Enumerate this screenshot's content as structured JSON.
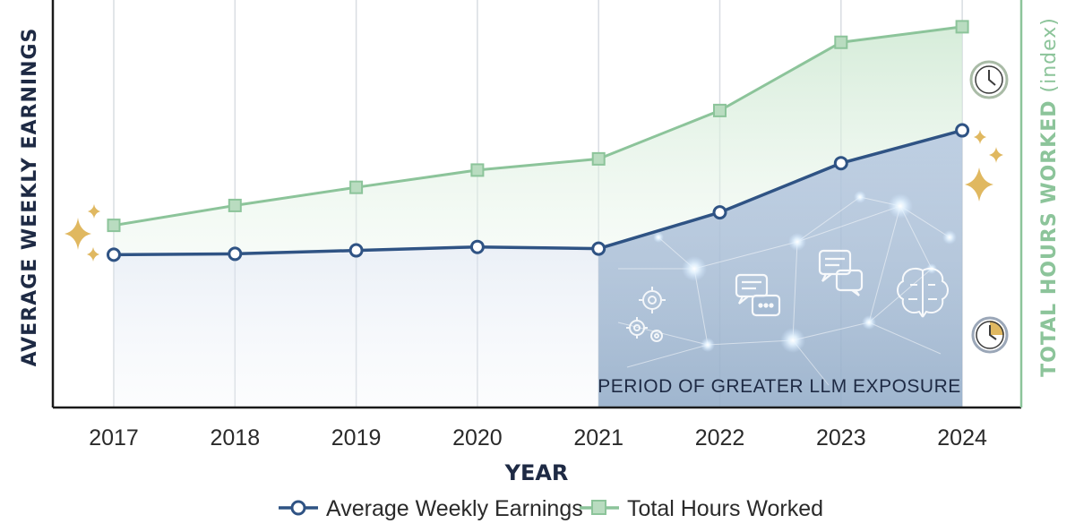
{
  "chart_data": {
    "type": "line",
    "title": "",
    "xlabel": "YEAR",
    "ylabel_left": "AVERAGE WEEKLY EARNINGS",
    "ylabel_right": "TOTAL HOURS WORKED",
    "ylabel_right_unit": "(index)",
    "x": [
      "2017",
      "2018",
      "2019",
      "2020",
      "2021",
      "2022",
      "2023",
      "2024"
    ],
    "series": [
      {
        "name": "Average Weekly Earnings",
        "axis": "left",
        "color": "#2f5384",
        "marker": "circle",
        "values": [
          100,
          100.2,
          101,
          101.8,
          101.4,
          109.8,
          121.2,
          128.8
        ]
      },
      {
        "name": "Total Hours Worked",
        "axis": "left",
        "color": "#8cc49a",
        "marker": "square",
        "values": [
          106.8,
          111.4,
          115.6,
          119.6,
          122.2,
          133.4,
          149.2,
          152.8
        ]
      }
    ],
    "ylim": [
      64.6,
      159
    ],
    "grid": "vertical",
    "shaded_region": {
      "label": "PERIOD OF GREATER LLM EXPOSURE",
      "from": "2021",
      "to": "2024"
    },
    "legend_placement": "bottom-center",
    "decorations": [
      "sparkle-icon",
      "clock-icon",
      "gear-icon",
      "chat-bubble-icon",
      "brain-icon",
      "network-graphic"
    ]
  }
}
